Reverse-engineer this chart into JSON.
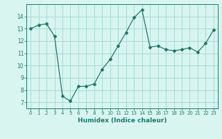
{
  "x": [
    0,
    1,
    2,
    3,
    4,
    5,
    6,
    7,
    8,
    9,
    10,
    11,
    12,
    13,
    14,
    15,
    16,
    17,
    18,
    19,
    20,
    21,
    22,
    23
  ],
  "y": [
    13.0,
    13.3,
    13.4,
    12.4,
    7.5,
    7.1,
    8.3,
    8.3,
    8.5,
    9.7,
    10.5,
    11.6,
    12.7,
    13.9,
    14.55,
    11.5,
    11.6,
    11.3,
    11.2,
    11.3,
    11.45,
    11.1,
    11.8,
    12.9
  ],
  "xlim": [
    -0.5,
    23.5
  ],
  "ylim": [
    6.5,
    15.0
  ],
  "yticks": [
    7,
    8,
    9,
    10,
    11,
    12,
    13,
    14
  ],
  "xticks": [
    0,
    1,
    2,
    3,
    4,
    5,
    6,
    7,
    8,
    9,
    10,
    11,
    12,
    13,
    14,
    15,
    16,
    17,
    18,
    19,
    20,
    21,
    22,
    23
  ],
  "xlabel": "Humidex (Indice chaleur)",
  "line_color": "#1a7a6e",
  "marker": "D",
  "marker_size": 2.0,
  "bg_color": "#d9f5f0",
  "grid_color": "#a0d8d0"
}
